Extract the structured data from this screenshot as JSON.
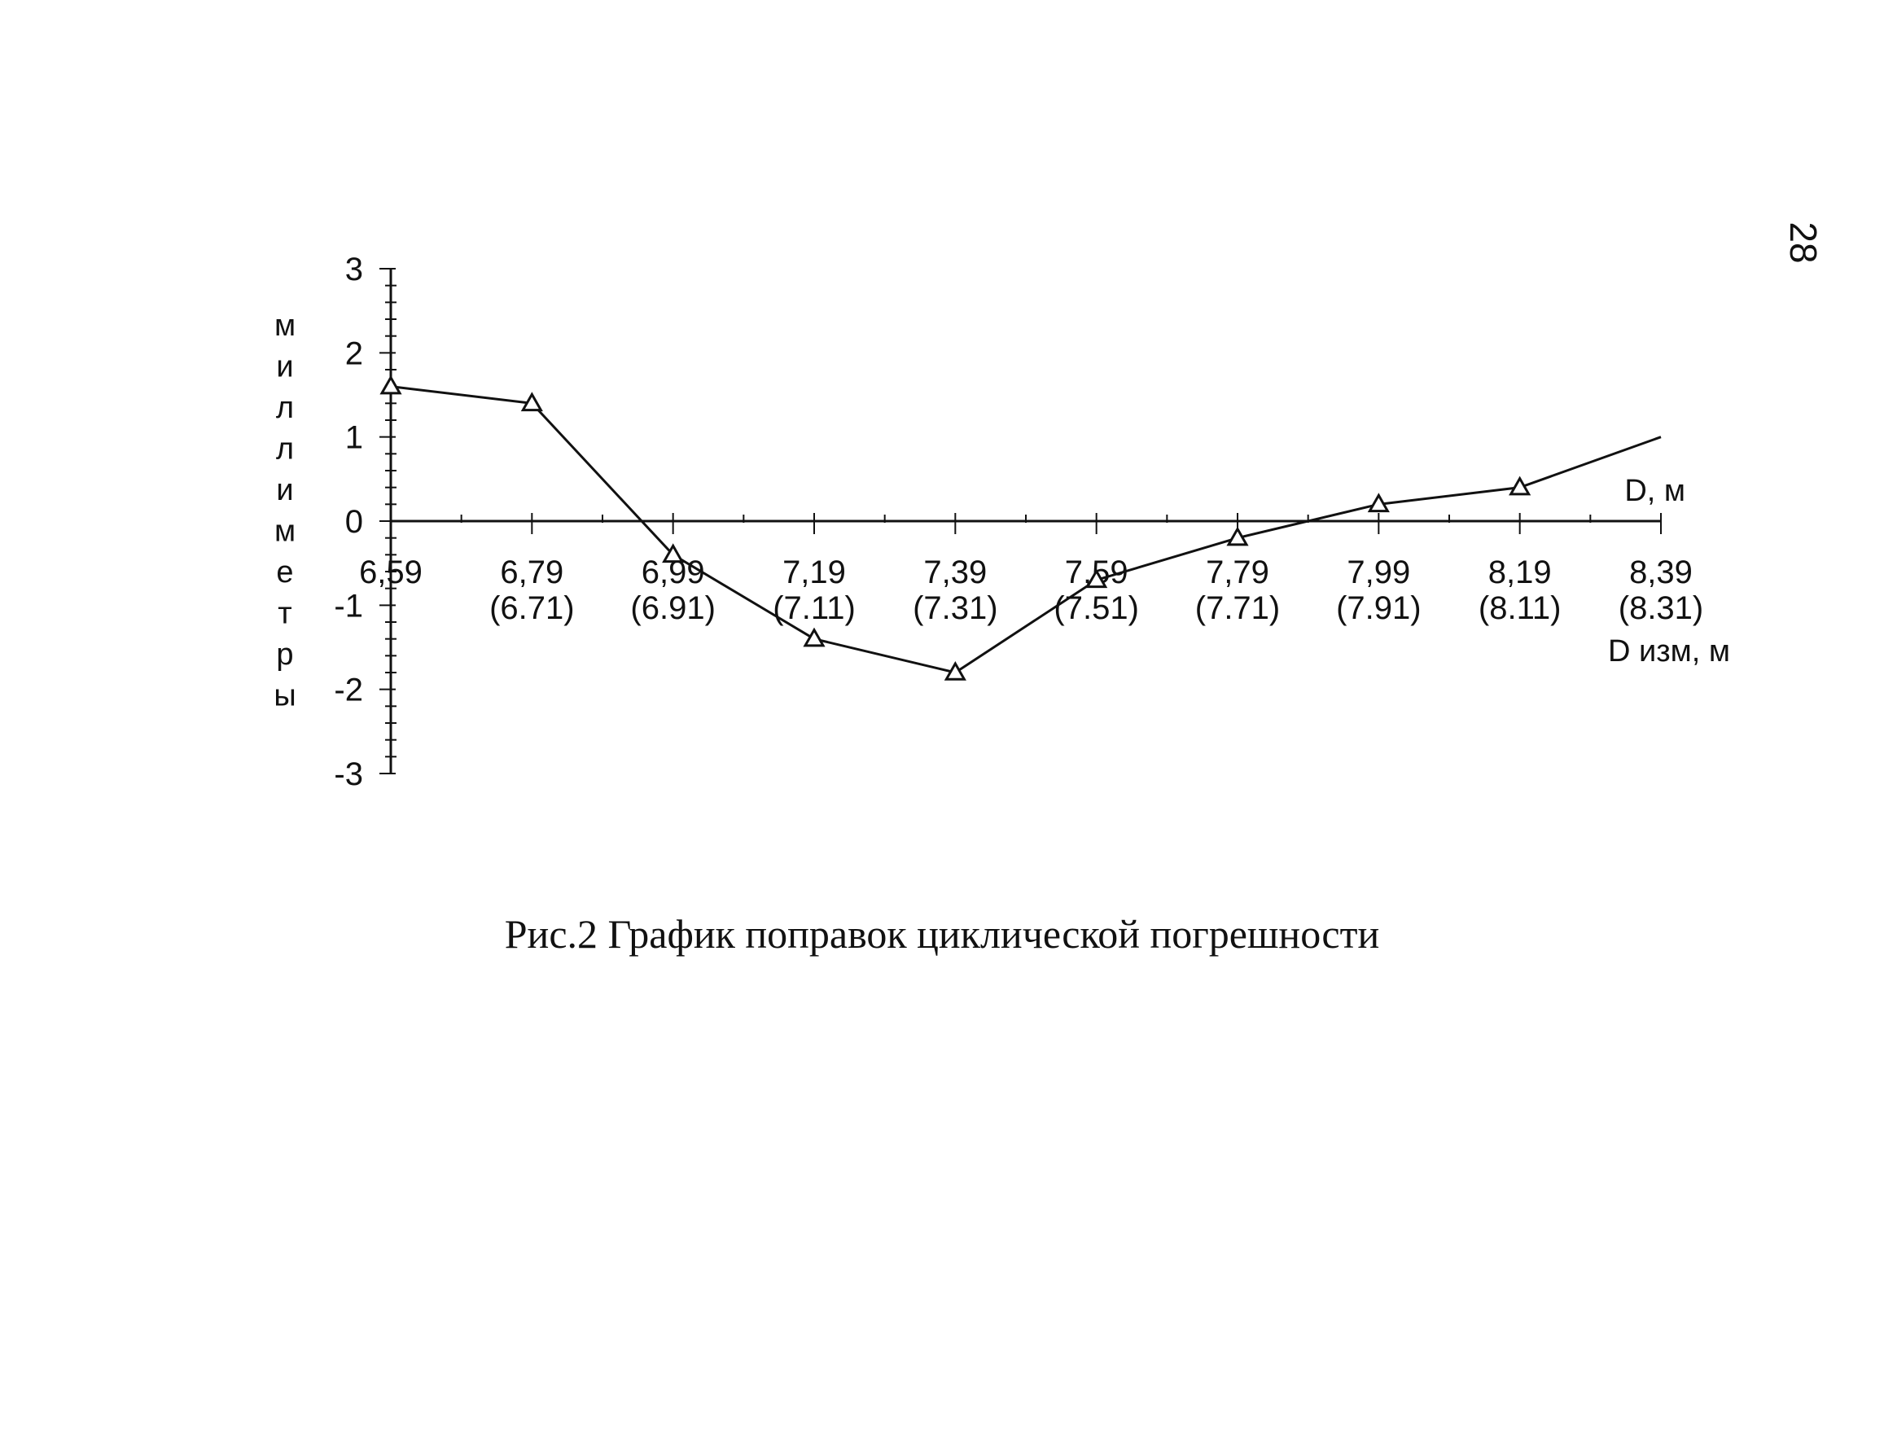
{
  "page_number": "28",
  "caption": "Рис.2 График поправок циклической погрешности",
  "chart_data": {
    "type": "line",
    "title": "",
    "xlabel": "D, м",
    "xlabel_secondary": "D изм, м",
    "ylabel": "миллиметры",
    "ylim": [
      -3,
      3
    ],
    "xlim": [
      6.59,
      8.39
    ],
    "yticks": [
      3,
      2,
      1,
      0,
      -1,
      -2,
      -3
    ],
    "xticks": [
      {
        "value": 6.59,
        "label": "6,59",
        "sub": ""
      },
      {
        "value": 6.79,
        "label": "6,79",
        "sub": "(6.71)"
      },
      {
        "value": 6.99,
        "label": "6,99",
        "sub": "(6.91)"
      },
      {
        "value": 7.19,
        "label": "7,19",
        "sub": "(7.11)"
      },
      {
        "value": 7.39,
        "label": "7,39",
        "sub": "(7.31)"
      },
      {
        "value": 7.59,
        "label": "7,59",
        "sub": "(7.51)"
      },
      {
        "value": 7.79,
        "label": "7,79",
        "sub": "(7.71)"
      },
      {
        "value": 7.99,
        "label": "7,99",
        "sub": "(7.91)"
      },
      {
        "value": 8.19,
        "label": "8,19",
        "sub": "(8.11)"
      },
      {
        "value": 8.39,
        "label": "8,39",
        "sub": "(8.31)"
      }
    ],
    "series": [
      {
        "color": "#111111",
        "marker": "triangle-open",
        "x": [
          6.59,
          6.79,
          6.99,
          7.19,
          7.39,
          7.59,
          7.79,
          7.99,
          8.19,
          8.39
        ],
        "y": [
          1.6,
          1.4,
          -0.4,
          -1.4,
          -1.8,
          -0.7,
          -0.2,
          0.2,
          0.4,
          1.0
        ],
        "marked": [
          true,
          true,
          true,
          true,
          true,
          true,
          true,
          true,
          true,
          false
        ]
      }
    ],
    "grid": false,
    "legend": "none"
  }
}
